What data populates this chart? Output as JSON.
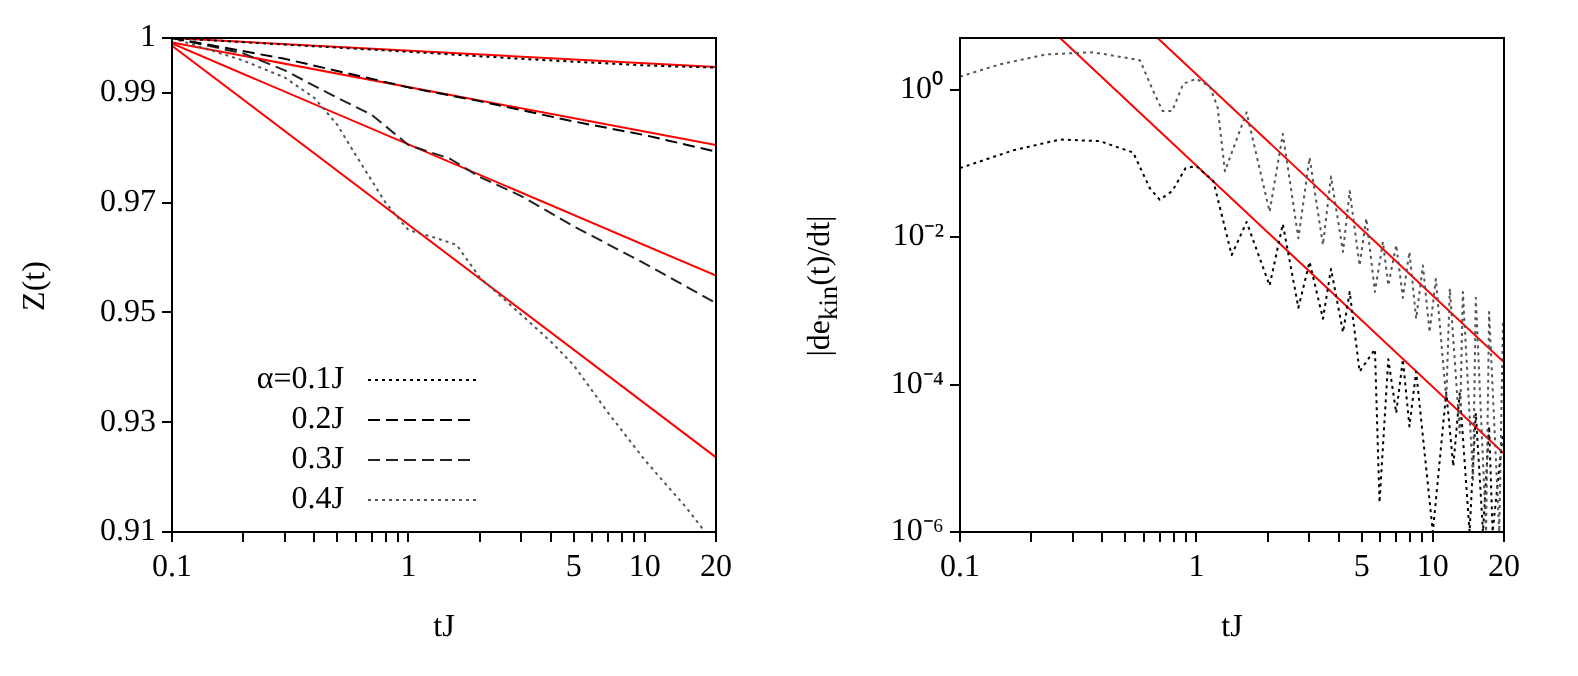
{
  "chart_data": [
    {
      "type": "line",
      "xlabel": "tJ",
      "ylabel": "Z(t)",
      "log": "x",
      "xlim": [
        0.1,
        20
      ],
      "ylim": [
        0.91,
        1
      ],
      "grid": false,
      "legend": "bottom left",
      "marker": "none",
      "xticks": [
        0.1,
        {
          "value": 0.2,
          "label": null
        },
        {
          "value": 0.3,
          "label": null
        },
        {
          "value": 0.4,
          "label": null
        },
        {
          "value": 0.5,
          "label": null
        },
        {
          "value": 0.6,
          "label": null
        },
        {
          "value": 0.7,
          "label": null
        },
        {
          "value": 0.8,
          "label": null
        },
        {
          "value": 0.9,
          "label": null
        },
        1,
        {
          "value": 2,
          "label": null
        },
        {
          "value": 3,
          "label": null
        },
        {
          "value": 4,
          "label": null
        },
        5,
        {
          "value": 6,
          "label": null
        },
        {
          "value": 7,
          "label": null
        },
        {
          "value": 8,
          "label": null
        },
        {
          "value": 9,
          "label": null
        },
        10,
        20
      ],
      "yticks": [
        0.91,
        0.93,
        0.95,
        0.97,
        0.99,
        1
      ],
      "series": [
        {
          "name": "α=0.1J",
          "color": "#000000",
          "line_style": "dotted",
          "x": [
            0.1,
            0.3,
            1,
            3,
            10,
            20
          ],
          "values": [
            1,
            0.9988,
            0.9975,
            0.9962,
            0.995,
            0.9946
          ]
        },
        {
          "name": "0.2J",
          "color": "#000000",
          "line_style": "dashed",
          "x": [
            0.1,
            0.3,
            0.5,
            1,
            2,
            5,
            10,
            20
          ],
          "values": [
            1,
            0.9962,
            0.994,
            0.991,
            0.9885,
            0.9848,
            0.9823,
            0.9793
          ]
        },
        {
          "name": "0.3J",
          "color": "#222222",
          "line_style": "dashed",
          "x": [
            0.1,
            0.2,
            0.3,
            0.5,
            0.7,
            1,
            1.5,
            2,
            3,
            5,
            10,
            20
          ],
          "values": [
            1,
            0.9972,
            0.9941,
            0.9891,
            0.986,
            0.9805,
            0.978,
            0.9747,
            0.9712,
            0.9657,
            0.9589,
            0.9517
          ]
        },
        {
          "name": "0.4J",
          "color": "#555555",
          "line_style": "dotted",
          "x": [
            0.1,
            0.2,
            0.3,
            0.4,
            0.5,
            0.6,
            0.8,
            1,
            1.3,
            1.6,
            2,
            3,
            4,
            5,
            7,
            10,
            15,
            18
          ],
          "values": [
            1,
            0.9959,
            0.9928,
            0.9891,
            0.9842,
            0.9786,
            0.97,
            0.965,
            0.9636,
            0.9623,
            0.9564,
            0.9496,
            0.9447,
            0.9404,
            0.9317,
            0.9231,
            0.9144,
            0.91
          ]
        },
        {
          "color": "#ff0000",
          "line_style": "solid",
          "x": [
            0.1,
            20
          ],
          "values": [
            1,
            0.9947
          ]
        },
        {
          "color": "#ff0000",
          "line_style": "solid",
          "x": [
            0.1,
            20
          ],
          "values": [
            0.9992,
            0.9805
          ]
        },
        {
          "color": "#ff0000",
          "line_style": "solid",
          "x": [
            0.1,
            20
          ],
          "values": [
            0.999,
            0.9567
          ]
        },
        {
          "color": "#ff0000",
          "line_style": "solid",
          "x": [
            0.1,
            20
          ],
          "values": [
            0.9986,
            0.9236
          ]
        }
      ]
    },
    {
      "type": "line",
      "xlabel": "tJ",
      "ylabel": "|de$_{kin}$(t)/dt|",
      "log": "xy",
      "xlim": [
        0.1,
        20
      ],
      "ylim": [
        1e-06,
        5
      ],
      "grid": false,
      "marker": "none",
      "xticks": [
        0.1,
        {
          "value": 0.2,
          "label": null
        },
        {
          "value": 0.3,
          "label": null
        },
        {
          "value": 0.4,
          "label": null
        },
        {
          "value": 0.5,
          "label": null
        },
        {
          "value": 0.6,
          "label": null
        },
        {
          "value": 0.7,
          "label": null
        },
        {
          "value": 0.8,
          "label": null
        },
        {
          "value": 0.9,
          "label": null
        },
        1,
        {
          "value": 2,
          "label": null
        },
        {
          "value": 3,
          "label": null
        },
        {
          "value": 4,
          "label": null
        },
        5,
        {
          "value": 6,
          "label": null
        },
        {
          "value": 7,
          "label": null
        },
        {
          "value": 8,
          "label": null
        },
        {
          "value": 9,
          "label": null
        },
        10,
        20
      ],
      "yticks": [
        {
          "value": 1e-06,
          "label": "10⁻⁶"
        },
        {
          "value": 0.0001,
          "label": "10⁻⁴"
        },
        {
          "value": 0.01,
          "label": "10⁻²"
        },
        {
          "value": 1,
          "label": "10⁰"
        }
      ],
      "series": [
        {
          "color": "#555555",
          "line_style": "dotted",
          "x": [
            0.1,
            0.148,
            0.232,
            0.366,
            0.577,
            0.656,
            0.72,
            0.79,
            0.88,
            1.0,
            1.14,
            1.23,
            1.32,
            1.63,
            2.04,
            2.32,
            2.7,
            3.01,
            3.43,
            3.71,
            4.17,
            4.45,
            4.9,
            5.23,
            5.69,
            6.15,
            6.48,
            7.0,
            7.47,
            7.96,
            8.5,
            9.08,
            9.69,
            10.3,
            11.4,
            11.8,
            13.0,
            13.4,
            14.8,
            15.2,
            16.8,
            17.3,
            19.1,
            19.8
          ],
          "values": [
            1.5,
            2.2,
            3.0,
            3.2,
            2.5,
            0.96,
            0.51,
            0.51,
            1.2,
            1.4,
            1.1,
            0.57,
            0.078,
            0.49,
            0.022,
            0.25,
            0.0096,
            0.12,
            0.0078,
            0.066,
            0.0063,
            0.042,
            0.0041,
            0.018,
            0.0018,
            0.0086,
            0.0022,
            0.0078,
            0.0015,
            0.0063,
            0.00078,
            0.0041,
            0.00051,
            0.0027,
            6.3e-05,
            0.002,
            2.2e-05,
            0.0018,
            5.1e-06,
            0.0015,
            1e-06,
            0.00096,
            1e-06,
            0.0007
          ]
        },
        {
          "color": "#000000",
          "line_style": "dotted",
          "x": [
            0.1,
            0.168,
            0.265,
            0.39,
            0.54,
            0.635,
            0.7,
            0.79,
            0.9,
            1.0,
            1.18,
            1.41,
            1.63,
            2.04,
            2.32,
            2.7,
            3.01,
            3.43,
            3.71,
            4.17,
            4.45,
            4.9,
            5.69,
            5.95,
            6.48,
            7.0,
            7.47,
            7.96,
            8.5,
            10,
            11.4,
            12.2,
            13.0,
            14.3,
            15.2,
            16.3,
            17.3,
            17.9,
            19.8
          ],
          "values": [
            0.086,
            0.15,
            0.21,
            0.2,
            0.14,
            0.046,
            0.032,
            0.042,
            0.086,
            0.092,
            0.057,
            0.0057,
            0.016,
            0.0022,
            0.015,
            0.0011,
            0.0046,
            0.00078,
            0.0037,
            0.00051,
            0.0018,
            0.00015,
            0.0003,
            2.5e-06,
            0.00022,
            4.1e-05,
            0.00022,
            2.7e-05,
            0.00015,
            1e-06,
            7.8e-05,
            7.8e-06,
            7.8e-05,
            1e-06,
            4.1e-05,
            1e-06,
            2.7e-05,
            1e-06,
            2.2e-05
          ]
        },
        {
          "color": "#ff0000",
          "line_style": "solid",
          "x": [
            0.685,
            20
          ],
          "values": [
            5,
            0.0002
          ]
        },
        {
          "color": "#ff0000",
          "line_style": "solid",
          "x": [
            0.265,
            20
          ],
          "values": [
            5,
            1.16e-05
          ]
        }
      ]
    }
  ]
}
